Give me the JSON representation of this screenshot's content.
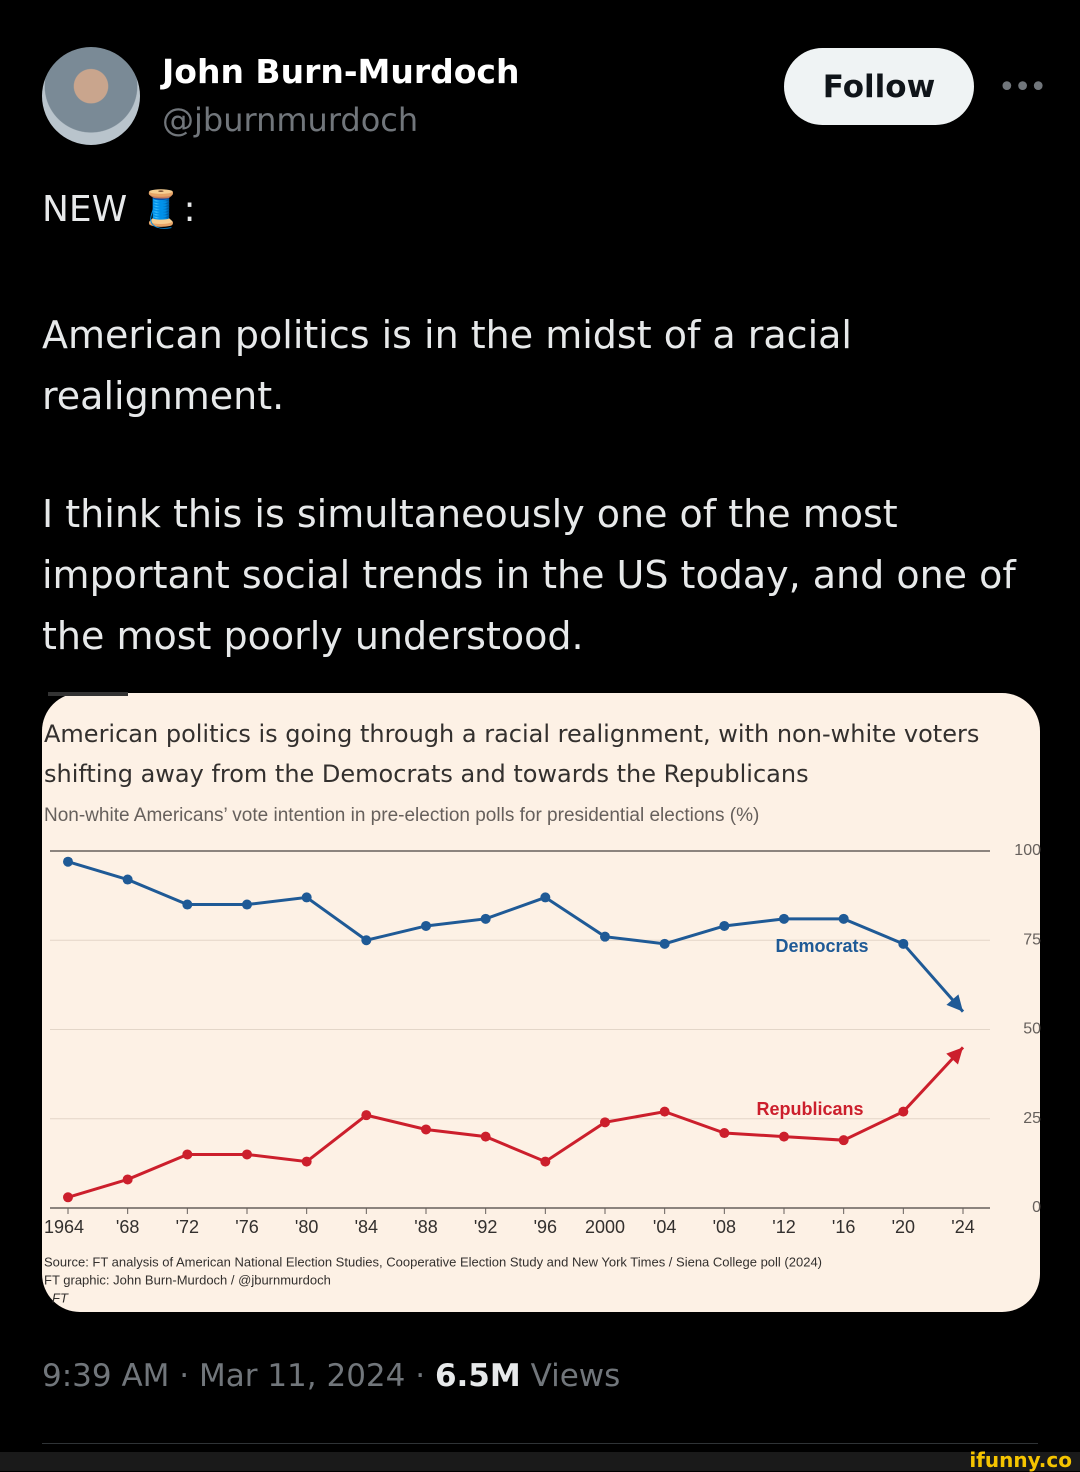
{
  "tweet": {
    "author_name": "John Burn-Murdoch",
    "handle": "@jburnmurdoch",
    "follow_button": "Follow",
    "intro": "NEW 🧵:",
    "paragraphs": [
      "American politics is in the midst of a racial realignment.",
      "I think this is simultaneously one of the most important social trends in the US today, and one of the most poorly understood."
    ],
    "timestamp": "9:39 AM · Mar 11, 2024 ·",
    "views_count": "6.5M",
    "views_label": "Views"
  },
  "watermark": "ifunny.co",
  "chart_data": {
    "type": "line",
    "title": "American politics is going through a racial realignment, with non-white voters shifting away from the Democrats and towards the Republicans",
    "subtitle": "Non-white Americans’ vote intention in pre-election polls for presidential elections (%)",
    "source": "Source: FT analysis of American National Election Studies, Cooperative Election Study and New York Times / Siena College poll (2024)",
    "credit": "FT graphic: John Burn-Murdoch / @jburnmurdoch",
    "brand": "FT",
    "categories": [
      "1964",
      "'68",
      "'72",
      "'76",
      "'80",
      "'84",
      "'88",
      "'92",
      "'96",
      "2000",
      "'04",
      "'08",
      "'12",
      "'16",
      "'20",
      "'24"
    ],
    "series": [
      {
        "name": "Democrats",
        "color": "#1f5a96",
        "values": [
          97,
          92,
          85,
          85,
          87,
          75,
          79,
          81,
          87,
          76,
          74,
          79,
          81,
          81,
          74,
          55
        ]
      },
      {
        "name": "Republicans",
        "color": "#cc1f2c",
        "values": [
          3,
          8,
          15,
          15,
          13,
          26,
          22,
          20,
          13,
          24,
          27,
          21,
          20,
          19,
          27,
          45
        ]
      }
    ],
    "ylim": [
      0,
      100
    ],
    "yticks": [
      0,
      25,
      50,
      75,
      100
    ],
    "grid": true
  }
}
